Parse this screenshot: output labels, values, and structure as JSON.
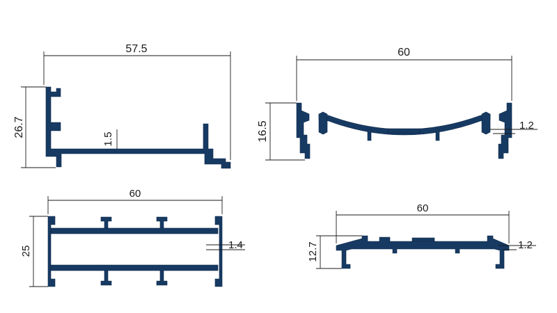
{
  "colors": {
    "profile": "#173a63",
    "dimension": "#1a1a1a",
    "background": "#ffffff"
  },
  "profiles": [
    {
      "id": "top-left",
      "width_label": "57.5",
      "height_label": "26.7",
      "thickness_label": "1.5"
    },
    {
      "id": "top-right",
      "width_label": "60",
      "height_label": "16.5",
      "thickness_label": "1.2"
    },
    {
      "id": "bottom-left",
      "width_label": "60",
      "height_label": "25",
      "thickness_label": "1.4"
    },
    {
      "id": "bottom-right",
      "width_label": "60",
      "height_label": "12.7",
      "thickness_label": "1.2"
    }
  ]
}
